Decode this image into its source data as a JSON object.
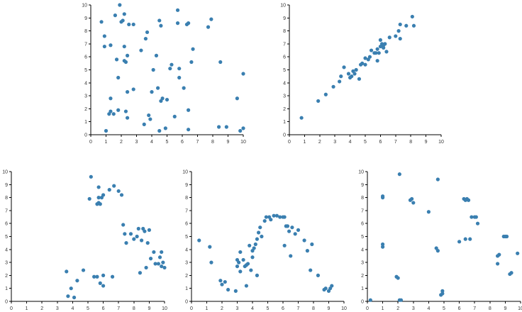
{
  "chart_data": [
    {
      "type": "scatter",
      "xlim": [
        0,
        10
      ],
      "ylim": [
        0,
        10
      ],
      "grid": false,
      "legend": "none",
      "xticks": [
        "0",
        "1",
        "2",
        "3",
        "4",
        "5",
        "6",
        "7",
        "8",
        "9",
        "10"
      ],
      "yticks": [
        "0",
        "1",
        "2",
        "3",
        "4",
        "5",
        "6",
        "7",
        "8",
        "9",
        "10"
      ],
      "series": [
        {
          "color": "#3a7fb0",
          "points": [
            [
              0.7,
              8.7
            ],
            [
              0.9,
              7.6
            ],
            [
              0.9,
              6.8
            ],
            [
              1.3,
              6.9
            ],
            [
              1.0,
              0.3
            ],
            [
              1.2,
              1.6
            ],
            [
              1.3,
              2.8
            ],
            [
              1.3,
              1.8
            ],
            [
              1.5,
              1.6
            ],
            [
              1.6,
              9.2
            ],
            [
              1.7,
              5.8
            ],
            [
              1.8,
              4.4
            ],
            [
              1.8,
              1.9
            ],
            [
              1.9,
              10.0
            ],
            [
              2.0,
              8.7
            ],
            [
              2.2,
              9.3
            ],
            [
              2.1,
              8.8
            ],
            [
              2.2,
              6.8
            ],
            [
              2.2,
              5.7
            ],
            [
              2.3,
              5.6
            ],
            [
              2.3,
              1.8
            ],
            [
              2.4,
              1.3
            ],
            [
              2.4,
              3.3
            ],
            [
              2.5,
              8.5
            ],
            [
              2.8,
              8.5
            ],
            [
              2.8,
              3.5
            ],
            [
              2.4,
              6.1
            ],
            [
              3.3,
              6.5
            ],
            [
              3.6,
              7.4
            ],
            [
              3.7,
              7.9
            ],
            [
              3.5,
              0.8
            ],
            [
              3.8,
              1.5
            ],
            [
              3.9,
              1.2
            ],
            [
              4.0,
              3.3
            ],
            [
              4.1,
              5.0
            ],
            [
              4.3,
              6.1
            ],
            [
              4.4,
              3.6
            ],
            [
              4.5,
              8.8
            ],
            [
              4.6,
              8.4
            ],
            [
              4.6,
              2.6
            ],
            [
              4.7,
              2.8
            ],
            [
              4.5,
              0.3
            ],
            [
              4.9,
              0.5
            ],
            [
              5.0,
              2.7
            ],
            [
              5.2,
              5.1
            ],
            [
              5.3,
              5.4
            ],
            [
              5.5,
              1.4
            ],
            [
              5.7,
              8.6
            ],
            [
              5.7,
              9.6
            ],
            [
              5.8,
              5.1
            ],
            [
              5.8,
              4.4
            ],
            [
              6.1,
              3.6
            ],
            [
              6.3,
              8.5
            ],
            [
              6.4,
              8.6
            ],
            [
              6.4,
              1.9
            ],
            [
              6.4,
              0.4
            ],
            [
              6.6,
              5.6
            ],
            [
              6.7,
              6.6
            ],
            [
              7.7,
              8.3
            ],
            [
              7.9,
              8.9
            ],
            [
              8.4,
              0.6
            ],
            [
              8.5,
              5.6
            ],
            [
              8.9,
              0.6
            ],
            [
              9.6,
              2.8
            ],
            [
              9.8,
              0.3
            ],
            [
              10.0,
              4.7
            ],
            [
              10.0,
              0.5
            ]
          ]
        }
      ]
    },
    {
      "type": "scatter",
      "xlim": [
        0,
        10
      ],
      "ylim": [
        0,
        10
      ],
      "grid": false,
      "legend": "none",
      "xticks": [
        "0",
        "1",
        "2",
        "3",
        "4",
        "5",
        "6",
        "7",
        "8",
        "9",
        "10"
      ],
      "yticks": [
        "0",
        "1",
        "2",
        "3",
        "4",
        "5",
        "6",
        "7",
        "8",
        "9",
        "10"
      ],
      "series": [
        {
          "color": "#3a7fb0",
          "points": [
            [
              0.8,
              1.3
            ],
            [
              1.9,
              2.6
            ],
            [
              2.4,
              3.1
            ],
            [
              2.9,
              3.7
            ],
            [
              3.3,
              4.1
            ],
            [
              3.4,
              4.5
            ],
            [
              3.6,
              5.2
            ],
            [
              3.9,
              4.7
            ],
            [
              4.0,
              4.4
            ],
            [
              4.1,
              4.5
            ],
            [
              4.2,
              4.9
            ],
            [
              4.3,
              4.7
            ],
            [
              4.4,
              5.0
            ],
            [
              4.6,
              4.3
            ],
            [
              4.7,
              5.4
            ],
            [
              4.8,
              5.5
            ],
            [
              5.0,
              5.4
            ],
            [
              5.0,
              5.9
            ],
            [
              5.2,
              5.8
            ],
            [
              5.3,
              6.0
            ],
            [
              5.4,
              6.5
            ],
            [
              5.6,
              6.3
            ],
            [
              5.7,
              6.3
            ],
            [
              5.8,
              5.7
            ],
            [
              5.8,
              6.6
            ],
            [
              5.9,
              6.3
            ],
            [
              6.0,
              6.8
            ],
            [
              6.0,
              7.3
            ],
            [
              6.1,
              7.0
            ],
            [
              6.2,
              6.9
            ],
            [
              6.3,
              7.0
            ],
            [
              6.4,
              6.4
            ],
            [
              6.2,
              6.7
            ],
            [
              6.6,
              7.5
            ],
            [
              7.0,
              7.6
            ],
            [
              7.2,
              8.0
            ],
            [
              7.3,
              8.5
            ],
            [
              7.3,
              7.4
            ],
            [
              7.7,
              8.4
            ],
            [
              8.1,
              9.1
            ],
            [
              8.2,
              8.4
            ]
          ]
        }
      ]
    },
    {
      "type": "scatter",
      "xlim": [
        0,
        10
      ],
      "ylim": [
        0,
        10
      ],
      "grid": false,
      "legend": "none",
      "xticks": [
        "0",
        "1",
        "2",
        "3",
        "4",
        "5",
        "6",
        "7",
        "8",
        "9",
        "10"
      ],
      "yticks": [
        "0",
        "1",
        "2",
        "3",
        "4",
        "5",
        "6",
        "7",
        "8",
        "9",
        "10"
      ],
      "series": [
        {
          "color": "#3a7fb0",
          "points": [
            [
              3.6,
              2.3
            ],
            [
              3.7,
              0.4
            ],
            [
              3.9,
              1.0
            ],
            [
              4.1,
              0.3
            ],
            [
              4.3,
              1.6
            ],
            [
              4.7,
              2.4
            ],
            [
              5.1,
              7.9
            ],
            [
              5.2,
              9.6
            ],
            [
              5.4,
              1.9
            ],
            [
              5.6,
              7.5
            ],
            [
              5.6,
              1.9
            ],
            [
              5.7,
              8.0
            ],
            [
              5.7,
              7.6
            ],
            [
              5.7,
              8.8
            ],
            [
              5.8,
              7.5
            ],
            [
              5.8,
              1.4
            ],
            [
              5.9,
              8.0
            ],
            [
              6.0,
              1.2
            ],
            [
              6.0,
              8.2
            ],
            [
              6.0,
              2.0
            ],
            [
              6.4,
              8.6
            ],
            [
              6.6,
              1.9
            ],
            [
              6.7,
              8.9
            ],
            [
              7.0,
              8.5
            ],
            [
              7.2,
              8.2
            ],
            [
              7.3,
              5.9
            ],
            [
              7.4,
              5.2
            ],
            [
              7.5,
              4.5
            ],
            [
              7.8,
              5.2
            ],
            [
              8.0,
              4.8
            ],
            [
              8.2,
              5.0
            ],
            [
              8.3,
              5.6
            ],
            [
              8.4,
              2.2
            ],
            [
              8.5,
              4.7
            ],
            [
              8.6,
              5.6
            ],
            [
              8.7,
              5.4
            ],
            [
              8.8,
              2.6
            ],
            [
              8.9,
              4.5
            ],
            [
              9.0,
              5.5
            ],
            [
              9.1,
              3.3
            ],
            [
              9.3,
              3.8
            ],
            [
              9.4,
              2.9
            ],
            [
              9.6,
              2.9
            ],
            [
              9.7,
              3.4
            ],
            [
              9.8,
              2.7
            ],
            [
              9.8,
              3.8
            ],
            [
              10.0,
              2.6
            ],
            [
              9.9,
              3.0
            ]
          ]
        }
      ]
    },
    {
      "type": "scatter",
      "xlim": [
        0,
        10
      ],
      "ylim": [
        0,
        10
      ],
      "grid": false,
      "legend": "none",
      "xticks": [
        "0",
        "1",
        "2",
        "3",
        "4",
        "5",
        "6",
        "7",
        "8",
        "9",
        "10"
      ],
      "yticks": [
        "0",
        "1",
        "2",
        "3",
        "4",
        "5",
        "6",
        "7",
        "8",
        "9",
        "10"
      ],
      "series": [
        {
          "color": "#3a7fb0",
          "points": [
            [
              0.5,
              4.7
            ],
            [
              1.2,
              4.2
            ],
            [
              1.3,
              3.0
            ],
            [
              1.9,
              1.6
            ],
            [
              2.0,
              1.3
            ],
            [
              2.2,
              1.5
            ],
            [
              2.4,
              0.9
            ],
            [
              2.9,
              0.8
            ],
            [
              3.0,
              3.2
            ],
            [
              3.0,
              2.7
            ],
            [
              3.1,
              3.0
            ],
            [
              3.2,
              2.3
            ],
            [
              3.2,
              3.8
            ],
            [
              3.4,
              3.2
            ],
            [
              3.5,
              2.7
            ],
            [
              3.6,
              2.8
            ],
            [
              3.6,
              1.2
            ],
            [
              3.7,
              2.9
            ],
            [
              3.8,
              4.3
            ],
            [
              3.9,
              2.4
            ],
            [
              4.0,
              3.4
            ],
            [
              4.0,
              3.9
            ],
            [
              4.1,
              4.1
            ],
            [
              4.2,
              4.4
            ],
            [
              4.3,
              2.0
            ],
            [
              4.3,
              4.8
            ],
            [
              4.4,
              5.3
            ],
            [
              4.5,
              5.7
            ],
            [
              4.6,
              5.0
            ],
            [
              4.8,
              6.2
            ],
            [
              4.9,
              6.5
            ],
            [
              5.1,
              6.5
            ],
            [
              5.2,
              6.3
            ],
            [
              5.4,
              6.6
            ],
            [
              5.6,
              6.6
            ],
            [
              5.8,
              6.5
            ],
            [
              6.0,
              6.5
            ],
            [
              6.1,
              6.5
            ],
            [
              6.1,
              4.3
            ],
            [
              6.2,
              5.8
            ],
            [
              6.3,
              5.8
            ],
            [
              6.4,
              5.4
            ],
            [
              6.5,
              3.5
            ],
            [
              6.6,
              5.7
            ],
            [
              6.8,
              5.2
            ],
            [
              7.0,
              5.5
            ],
            [
              7.4,
              4.7
            ],
            [
              7.6,
              3.9
            ],
            [
              7.8,
              2.4
            ],
            [
              7.9,
              4.4
            ],
            [
              8.3,
              2.0
            ],
            [
              8.7,
              0.9
            ],
            [
              8.8,
              1.0
            ],
            [
              9.0,
              0.8
            ],
            [
              9.1,
              1.0
            ],
            [
              9.2,
              1.2
            ]
          ]
        }
      ]
    },
    {
      "type": "scatter",
      "xlim": [
        0,
        10
      ],
      "ylim": [
        0,
        10
      ],
      "grid": false,
      "legend": "none",
      "xticks": [
        "0",
        "1",
        "2",
        "3",
        "4",
        "5",
        "6",
        "7",
        "8",
        "9",
        "10"
      ],
      "yticks": [
        "0",
        "1",
        "2",
        "3",
        "4",
        "5",
        "6",
        "7",
        "8",
        "9",
        "10"
      ],
      "series": [
        {
          "color": "#3a7fb0",
          "points": [
            [
              0.2,
              0.1
            ],
            [
              1.0,
              4.4
            ],
            [
              1.0,
              4.2
            ],
            [
              1.0,
              8.0
            ],
            [
              1.0,
              8.1
            ],
            [
              1.9,
              1.9
            ],
            [
              2.0,
              1.8
            ],
            [
              2.1,
              0.1
            ],
            [
              2.1,
              9.8
            ],
            [
              2.2,
              0.1
            ],
            [
              2.8,
              7.8
            ],
            [
              2.9,
              7.9
            ],
            [
              3.0,
              7.6
            ],
            [
              4.0,
              6.9
            ],
            [
              4.5,
              4.1
            ],
            [
              4.6,
              3.9
            ],
            [
              4.6,
              9.4
            ],
            [
              4.9,
              0.6
            ],
            [
              4.9,
              0.8
            ],
            [
              4.8,
              0.5
            ],
            [
              6.0,
              4.6
            ],
            [
              6.3,
              7.9
            ],
            [
              6.4,
              4.8
            ],
            [
              6.4,
              7.8
            ],
            [
              6.5,
              7.9
            ],
            [
              6.6,
              7.8
            ],
            [
              6.7,
              4.8
            ],
            [
              6.8,
              6.5
            ],
            [
              7.0,
              6.5
            ],
            [
              7.1,
              6.5
            ],
            [
              7.2,
              6.0
            ],
            [
              8.5,
              3.5
            ],
            [
              8.5,
              2.9
            ],
            [
              8.6,
              3.6
            ],
            [
              8.9,
              5.0
            ],
            [
              9.0,
              5.0
            ],
            [
              9.1,
              5.0
            ],
            [
              9.3,
              2.1
            ],
            [
              9.4,
              2.2
            ],
            [
              9.8,
              3.7
            ]
          ]
        }
      ]
    }
  ]
}
